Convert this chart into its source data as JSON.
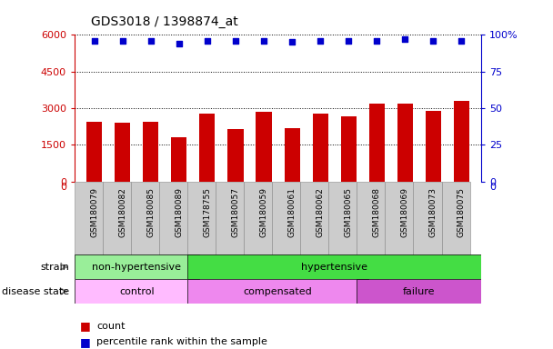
{
  "title": "GDS3018 / 1398874_at",
  "samples": [
    "GSM180079",
    "GSM180082",
    "GSM180085",
    "GSM180089",
    "GSM178755",
    "GSM180057",
    "GSM180059",
    "GSM180061",
    "GSM180062",
    "GSM180065",
    "GSM180068",
    "GSM180069",
    "GSM180073",
    "GSM180075"
  ],
  "counts": [
    2450,
    2420,
    2430,
    1800,
    2780,
    2150,
    2850,
    2200,
    2780,
    2680,
    3200,
    3180,
    2900,
    3300
  ],
  "percentile_ranks": [
    96,
    96,
    96,
    94,
    96,
    96,
    96,
    95,
    96,
    96,
    96,
    97,
    96,
    96
  ],
  "bar_color": "#cc0000",
  "dot_color": "#0000cc",
  "ylim_left": [
    0,
    6000
  ],
  "ylim_right": [
    0,
    100
  ],
  "yticks_left": [
    0,
    1500,
    3000,
    4500,
    6000
  ],
  "yticks_right": [
    0,
    25,
    50,
    75,
    100
  ],
  "strain_groups": [
    {
      "label": "non-hypertensive",
      "start": 0,
      "end": 4,
      "color": "#99ee99"
    },
    {
      "label": "hypertensive",
      "start": 4,
      "end": 14,
      "color": "#44dd44"
    }
  ],
  "disease_groups": [
    {
      "label": "control",
      "start": 0,
      "end": 4,
      "color": "#ffbbff"
    },
    {
      "label": "compensated",
      "start": 4,
      "end": 10,
      "color": "#ee88ee"
    },
    {
      "label": "failure",
      "start": 10,
      "end": 14,
      "color": "#cc55cc"
    }
  ],
  "legend_items": [
    {
      "label": "count",
      "color": "#cc0000"
    },
    {
      "label": "percentile rank within the sample",
      "color": "#0000cc"
    }
  ],
  "tick_color_left": "#cc0000",
  "tick_color_right": "#0000cc",
  "grid_color": "#000000",
  "background_color": "#ffffff",
  "xtick_bg": "#cccccc"
}
